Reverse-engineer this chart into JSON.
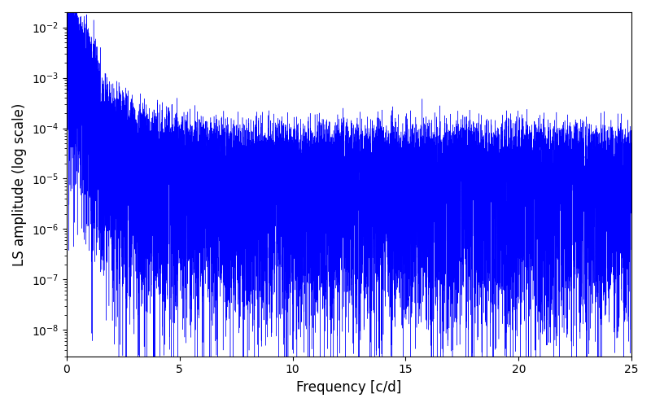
{
  "title": "",
  "xlabel": "Frequency [c/d]",
  "ylabel": "LS amplitude (log scale)",
  "xlim": [
    0,
    25
  ],
  "ylim": [
    3e-09,
    0.02
  ],
  "line_color": "#0000ff",
  "line_width": 0.3,
  "yscale": "log",
  "figsize": [
    8.0,
    5.0
  ],
  "dpi": 100,
  "freq_max": 25.0,
  "n_points": 10000,
  "seed": 12345,
  "bg_color": "#ffffff",
  "xlabel_fontsize": 12,
  "ylabel_fontsize": 12
}
